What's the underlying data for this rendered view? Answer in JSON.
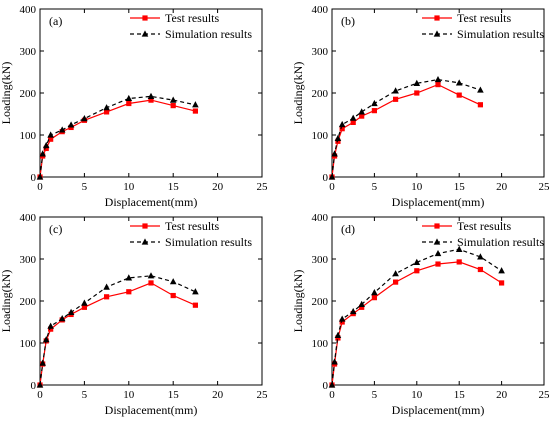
{
  "chart_data": [
    {
      "type": "line",
      "panel_label": "(a)",
      "xlabel": "Displacement(mm)",
      "ylabel": "Loading(kN)",
      "xlim": [
        0,
        25
      ],
      "ylim": [
        0,
        400
      ],
      "xticks": [
        0,
        5,
        10,
        15,
        20,
        25
      ],
      "yticks": [
        0,
        100,
        200,
        300,
        400
      ],
      "legend_position": "top-center",
      "series": [
        {
          "name": "Test results",
          "color": "#ff0000",
          "marker": "square",
          "line_style": "solid",
          "x": [
            0,
            0.3,
            0.7,
            1.2,
            2.5,
            3.5,
            5,
            7.5,
            10,
            12.5,
            15,
            17.5
          ],
          "y": [
            0,
            50,
            68,
            90,
            108,
            118,
            135,
            155,
            175,
            183,
            170,
            157
          ]
        },
        {
          "name": "Simulation results",
          "color": "#000000",
          "marker": "triangle",
          "line_style": "dashed",
          "x": [
            0,
            0.3,
            0.7,
            1.2,
            2.5,
            3.5,
            5,
            7.5,
            10,
            12.5,
            15,
            17.5
          ],
          "y": [
            0,
            55,
            75,
            100,
            112,
            124,
            139,
            165,
            187,
            192,
            183,
            172
          ]
        }
      ]
    },
    {
      "type": "line",
      "panel_label": "(b)",
      "xlabel": "Displacement(mm)",
      "ylabel": "Loading(kN)",
      "xlim": [
        0,
        25
      ],
      "ylim": [
        0,
        400
      ],
      "xticks": [
        0,
        5,
        10,
        15,
        20,
        25
      ],
      "yticks": [
        0,
        100,
        200,
        300,
        400
      ],
      "legend_position": "top-right",
      "series": [
        {
          "name": "Test results",
          "color": "#ff0000",
          "marker": "square",
          "line_style": "solid",
          "x": [
            0,
            0.3,
            0.7,
            1.2,
            2.5,
            3.5,
            5,
            7.5,
            10,
            12.5,
            15,
            17.5
          ],
          "y": [
            0,
            50,
            85,
            115,
            130,
            145,
            158,
            185,
            200,
            220,
            195,
            172
          ]
        },
        {
          "name": "Simulation results",
          "color": "#000000",
          "marker": "triangle",
          "line_style": "dashed",
          "x": [
            0,
            0.3,
            0.7,
            1.2,
            2.5,
            3.5,
            5,
            7.5,
            10,
            12.5,
            15,
            17.5
          ],
          "y": [
            0,
            55,
            92,
            125,
            140,
            155,
            175,
            205,
            223,
            232,
            224,
            207
          ]
        }
      ]
    },
    {
      "type": "line",
      "panel_label": "(c)",
      "xlabel": "Displacement(mm)",
      "ylabel": "Loading(kN)",
      "xlim": [
        0,
        25
      ],
      "ylim": [
        0,
        400
      ],
      "xticks": [
        0,
        5,
        10,
        15,
        20,
        25
      ],
      "yticks": [
        0,
        100,
        200,
        300,
        400
      ],
      "legend_position": "top-center",
      "series": [
        {
          "name": "Test results",
          "color": "#ff0000",
          "marker": "square",
          "line_style": "solid",
          "x": [
            0,
            0.3,
            0.7,
            1.2,
            2.5,
            3.5,
            5,
            7.5,
            10,
            12.5,
            15,
            17.5
          ],
          "y": [
            0,
            50,
            105,
            133,
            155,
            168,
            185,
            210,
            222,
            243,
            213,
            190
          ]
        },
        {
          "name": "Simulation results",
          "color": "#000000",
          "marker": "triangle",
          "line_style": "dashed",
          "x": [
            0,
            0.3,
            0.7,
            1.2,
            2.5,
            3.5,
            5,
            7.5,
            10,
            12.5,
            15,
            17.5
          ],
          "y": [
            0,
            52,
            108,
            140,
            158,
            173,
            195,
            233,
            255,
            260,
            246,
            222
          ]
        }
      ]
    },
    {
      "type": "line",
      "panel_label": "(d)",
      "xlabel": "Displacement(mm)",
      "ylabel": "Loading(kN)",
      "xlim": [
        0,
        25
      ],
      "ylim": [
        0,
        400
      ],
      "xticks": [
        0,
        5,
        10,
        15,
        20,
        25
      ],
      "yticks": [
        0,
        100,
        200,
        300,
        400
      ],
      "legend_position": "top-center",
      "series": [
        {
          "name": "Test results",
          "color": "#ff0000",
          "marker": "square",
          "line_style": "solid",
          "x": [
            0,
            0.3,
            0.7,
            1.2,
            2.5,
            3.5,
            5,
            7.5,
            10,
            12.5,
            15,
            17.5,
            20
          ],
          "y": [
            0,
            50,
            112,
            150,
            170,
            185,
            208,
            245,
            272,
            288,
            293,
            275,
            243
          ]
        },
        {
          "name": "Simulation results",
          "color": "#000000",
          "marker": "triangle",
          "line_style": "dashed",
          "x": [
            0,
            0.3,
            0.7,
            1.2,
            2.5,
            3.5,
            5,
            7.5,
            10,
            12.5,
            15,
            17.5,
            20
          ],
          "y": [
            0,
            55,
            118,
            157,
            175,
            192,
            220,
            265,
            292,
            313,
            323,
            305,
            272
          ]
        }
      ]
    }
  ]
}
